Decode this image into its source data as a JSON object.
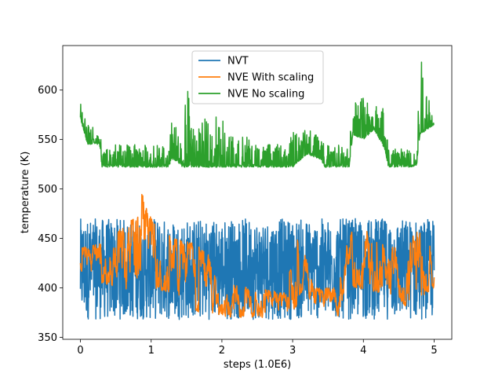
{
  "chart_data": {
    "type": "line",
    "xlabel": "steps (1.0E6)",
    "ylabel": "temperature (K)",
    "xlim": [
      -0.25,
      5.25
    ],
    "ylim": [
      348,
      645
    ],
    "xticks": [
      0,
      1,
      2,
      3,
      4,
      5
    ],
    "yticks": [
      350,
      400,
      450,
      500,
      550,
      600
    ],
    "legend_position": "top-center",
    "series": [
      {
        "name": "NVT",
        "color": "#1f77b4",
        "profile": [
          [
            0.0,
            368,
            470
          ],
          [
            5.0,
            368,
            470
          ]
        ]
      },
      {
        "name": "NVE With scaling",
        "color": "#ff7f0e",
        "profile": [
          [
            0.0,
            410,
            440
          ],
          [
            0.3,
            405,
            445
          ],
          [
            0.75,
            395,
            470
          ],
          [
            0.8,
            400,
            510
          ],
          [
            1.0,
            400,
            470
          ],
          [
            1.3,
            395,
            450
          ],
          [
            1.6,
            375,
            445
          ],
          [
            1.8,
            375,
            435
          ],
          [
            1.95,
            370,
            405
          ],
          [
            2.9,
            370,
            395
          ],
          [
            3.05,
            380,
            450
          ],
          [
            3.15,
            400,
            440
          ],
          [
            3.3,
            370,
            400
          ],
          [
            3.65,
            370,
            400
          ],
          [
            3.75,
            400,
            440
          ],
          [
            3.9,
            400,
            470
          ],
          [
            4.2,
            395,
            445
          ],
          [
            4.5,
            390,
            440
          ],
          [
            4.65,
            375,
            445
          ],
          [
            4.8,
            390,
            470
          ],
          [
            5.0,
            400,
            430
          ]
        ]
      },
      {
        "name": "NVE No scaling",
        "color": "#2ca02c",
        "profile": [
          [
            0.0,
            570,
            595
          ],
          [
            0.1,
            545,
            570
          ],
          [
            0.27,
            545,
            560
          ],
          [
            0.3,
            522,
            545
          ],
          [
            1.25,
            522,
            545
          ],
          [
            1.3,
            530,
            575
          ],
          [
            1.45,
            522,
            540
          ],
          [
            1.5,
            522,
            610
          ],
          [
            1.6,
            522,
            560
          ],
          [
            1.9,
            522,
            580
          ],
          [
            2.5,
            522,
            545
          ],
          [
            2.95,
            522,
            545
          ],
          [
            3.0,
            522,
            560
          ],
          [
            3.2,
            535,
            560
          ],
          [
            3.4,
            530,
            560
          ],
          [
            3.45,
            522,
            545
          ],
          [
            3.8,
            522,
            545
          ],
          [
            3.85,
            555,
            590
          ],
          [
            4.0,
            550,
            600
          ],
          [
            4.15,
            560,
            590
          ],
          [
            4.3,
            540,
            585
          ],
          [
            4.35,
            522,
            545
          ],
          [
            4.75,
            522,
            545
          ],
          [
            4.8,
            555,
            635
          ],
          [
            5.0,
            565,
            580
          ]
        ]
      }
    ]
  }
}
